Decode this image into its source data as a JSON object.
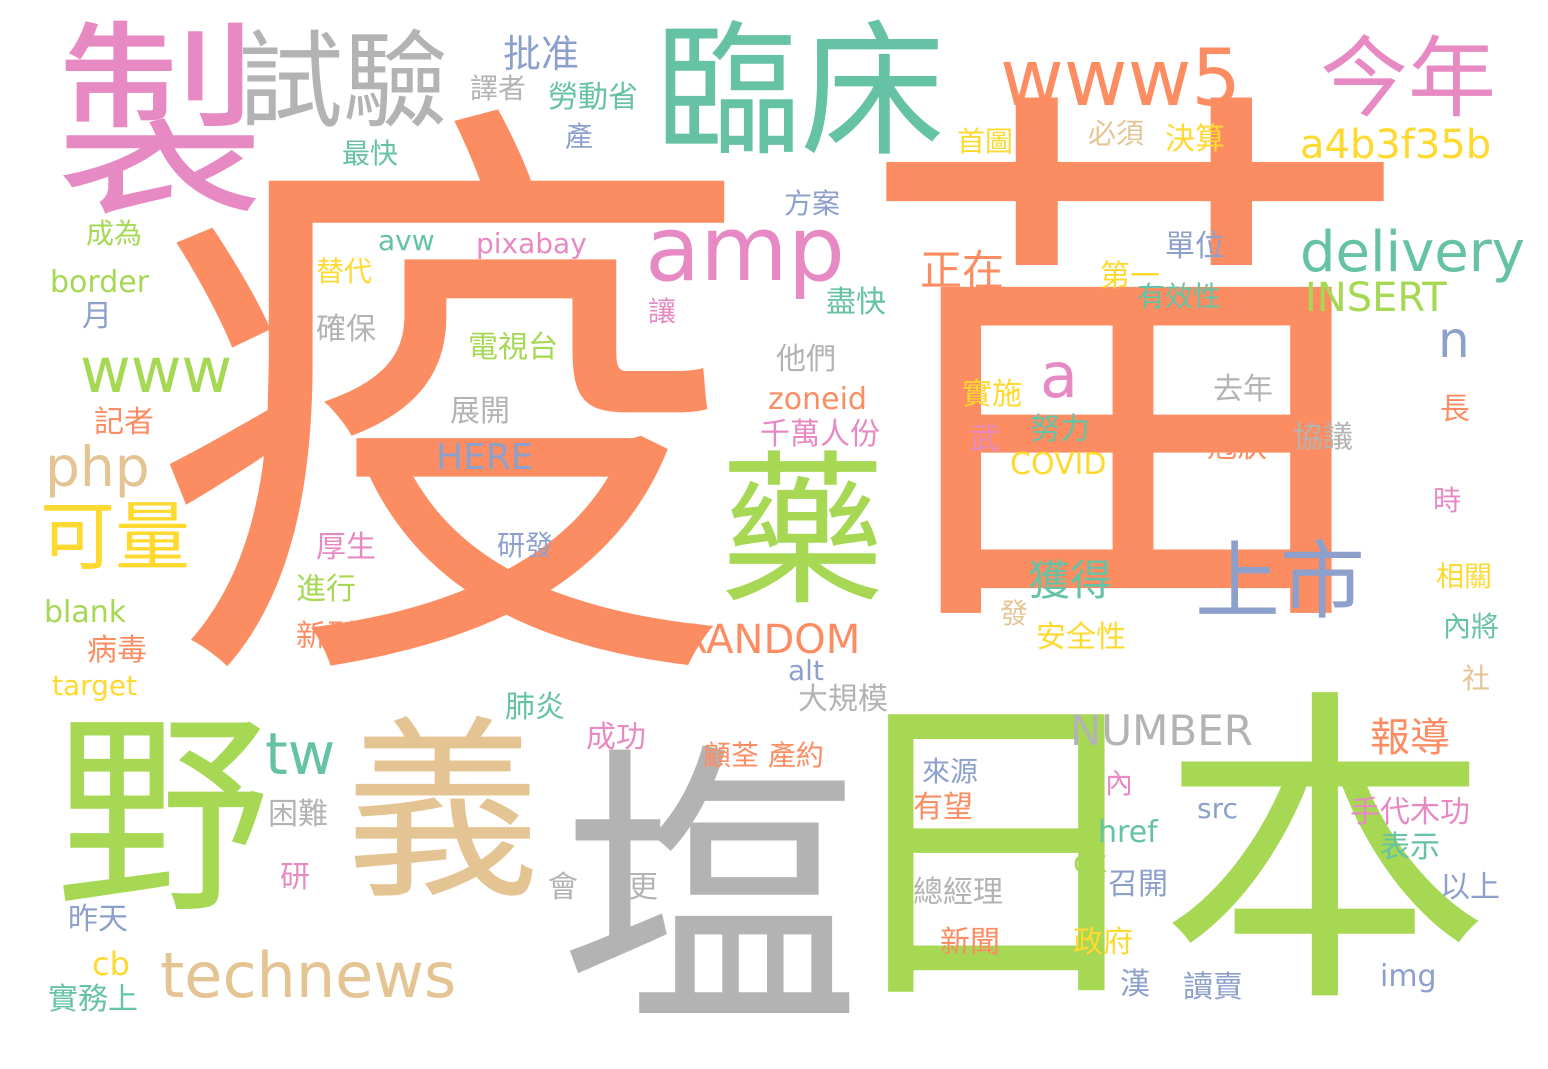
{
  "palette": {
    "orange": "#fc8d62",
    "green": "#a6d854",
    "teal": "#66c2a5",
    "pink": "#e78ac3",
    "blue": "#8da0cb",
    "yellow": "#ffd92f",
    "tan": "#e5c494",
    "gray": "#b3b3b3"
  },
  "words": [
    {
      "text": "疫",
      "color": "orange"
    },
    {
      "text": "苗",
      "color": "orange"
    },
    {
      "text": "日本",
      "color": "green"
    },
    {
      "text": "塩",
      "color": "gray"
    },
    {
      "text": "製",
      "color": "pink"
    },
    {
      "text": "臨床",
      "color": "teal"
    },
    {
      "text": "野",
      "color": "green"
    },
    {
      "text": "義",
      "color": "tan"
    },
    {
      "text": "藥",
      "color": "green"
    },
    {
      "text": "試驗",
      "color": "gray"
    },
    {
      "text": "www5",
      "color": "orange"
    },
    {
      "text": "今年",
      "color": "pink"
    },
    {
      "text": "amp",
      "color": "pink"
    },
    {
      "text": "上市",
      "color": "blue"
    },
    {
      "text": "technews",
      "color": "tan"
    },
    {
      "text": "可量",
      "color": "yellow"
    },
    {
      "text": "delivery",
      "color": "teal"
    },
    {
      "text": "www",
      "color": "green"
    },
    {
      "text": "a4b3f35b",
      "color": "yellow"
    },
    {
      "text": "php",
      "color": "tan"
    },
    {
      "text": "tw",
      "color": "teal"
    },
    {
      "text": "INSERT",
      "color": "green"
    },
    {
      "text": "RANDOM",
      "color": "orange"
    },
    {
      "text": "NUMBER",
      "color": "gray"
    },
    {
      "text": "a",
      "color": "pink"
    },
    {
      "text": "n",
      "color": "blue"
    },
    {
      "text": "正在",
      "color": "orange"
    },
    {
      "text": "批准",
      "color": "blue"
    },
    {
      "text": "獲得",
      "color": "teal"
    },
    {
      "text": "報導",
      "color": "orange"
    },
    {
      "text": "HERE",
      "color": "blue"
    },
    {
      "text": "電視台",
      "color": "green"
    },
    {
      "text": "勞動省",
      "color": "teal"
    },
    {
      "text": "譯者",
      "color": "gray"
    },
    {
      "text": "產",
      "color": "blue"
    },
    {
      "text": "最快",
      "color": "teal"
    },
    {
      "text": "首圖",
      "color": "yellow"
    },
    {
      "text": "必須",
      "color": "tan"
    },
    {
      "text": "決算",
      "color": "yellow"
    },
    {
      "text": "方案",
      "color": "blue"
    },
    {
      "text": "成為",
      "color": "green"
    },
    {
      "text": "avw",
      "color": "teal"
    },
    {
      "text": "pixabay",
      "color": "pink"
    },
    {
      "text": "替代",
      "color": "yellow"
    },
    {
      "text": "border",
      "color": "green"
    },
    {
      "text": "月",
      "color": "blue"
    },
    {
      "text": "確保",
      "color": "gray"
    },
    {
      "text": "讓",
      "color": "pink"
    },
    {
      "text": "盡快",
      "color": "teal"
    },
    {
      "text": "單位",
      "color": "blue"
    },
    {
      "text": "第一",
      "color": "yellow"
    },
    {
      "text": "有效性",
      "color": "teal"
    },
    {
      "text": "他們",
      "color": "gray"
    },
    {
      "text": "展開",
      "color": "gray"
    },
    {
      "text": "zoneid",
      "color": "orange"
    },
    {
      "text": "千萬人份",
      "color": "pink"
    },
    {
      "text": "實施",
      "color": "yellow"
    },
    {
      "text": "努力",
      "color": "teal"
    },
    {
      "text": "去年",
      "color": "gray"
    },
    {
      "text": "協議",
      "color": "gray"
    },
    {
      "text": "冠狀",
      "color": "orange"
    },
    {
      "text": "武",
      "color": "pink"
    },
    {
      "text": "COVID",
      "color": "yellow"
    },
    {
      "text": "記者",
      "color": "orange"
    },
    {
      "text": "長",
      "color": "orange"
    },
    {
      "text": "時",
      "color": "pink"
    },
    {
      "text": "相關",
      "color": "yellow"
    },
    {
      "text": "內將",
      "color": "teal"
    },
    {
      "text": "社",
      "color": "tan"
    },
    {
      "text": "厚生",
      "color": "pink"
    },
    {
      "text": "研發",
      "color": "blue"
    },
    {
      "text": "進行",
      "color": "green"
    },
    {
      "text": "新型",
      "color": "orange"
    },
    {
      "text": "發",
      "color": "tan"
    },
    {
      "text": "安全性",
      "color": "yellow"
    },
    {
      "text": "blank",
      "color": "green"
    },
    {
      "text": "病毒",
      "color": "orange"
    },
    {
      "text": "target",
      "color": "yellow"
    },
    {
      "text": "alt",
      "color": "blue"
    },
    {
      "text": "大規模",
      "color": "gray"
    },
    {
      "text": "肺炎",
      "color": "teal"
    },
    {
      "text": "成功",
      "color": "pink"
    },
    {
      "text": "顧荃 產約",
      "color": "orange"
    },
    {
      "text": "來源",
      "color": "blue"
    },
    {
      "text": "有望",
      "color": "orange"
    },
    {
      "text": "內",
      "color": "pink"
    },
    {
      "text": "src",
      "color": "blue"
    },
    {
      "text": "手代木功",
      "color": "pink"
    },
    {
      "text": "表示",
      "color": "teal"
    },
    {
      "text": "href",
      "color": "teal"
    },
    {
      "text": "ck",
      "color": "green"
    },
    {
      "text": "召開",
      "color": "blue"
    },
    {
      "text": "以上",
      "color": "blue"
    },
    {
      "text": "困難",
      "color": "gray"
    },
    {
      "text": "會",
      "color": "gray"
    },
    {
      "text": "更",
      "color": "gray"
    },
    {
      "text": "研",
      "color": "pink"
    },
    {
      "text": "總經理",
      "color": "gray"
    },
    {
      "text": "昨天",
      "color": "blue"
    },
    {
      "text": "cb",
      "color": "yellow"
    },
    {
      "text": "新聞",
      "color": "orange"
    },
    {
      "text": "政府",
      "color": "yellow"
    },
    {
      "text": "漢",
      "color": "blue"
    },
    {
      "text": "讀賣",
      "color": "blue"
    },
    {
      "text": "img",
      "color": "blue"
    },
    {
      "text": "實務上",
      "color": "teal"
    }
  ]
}
